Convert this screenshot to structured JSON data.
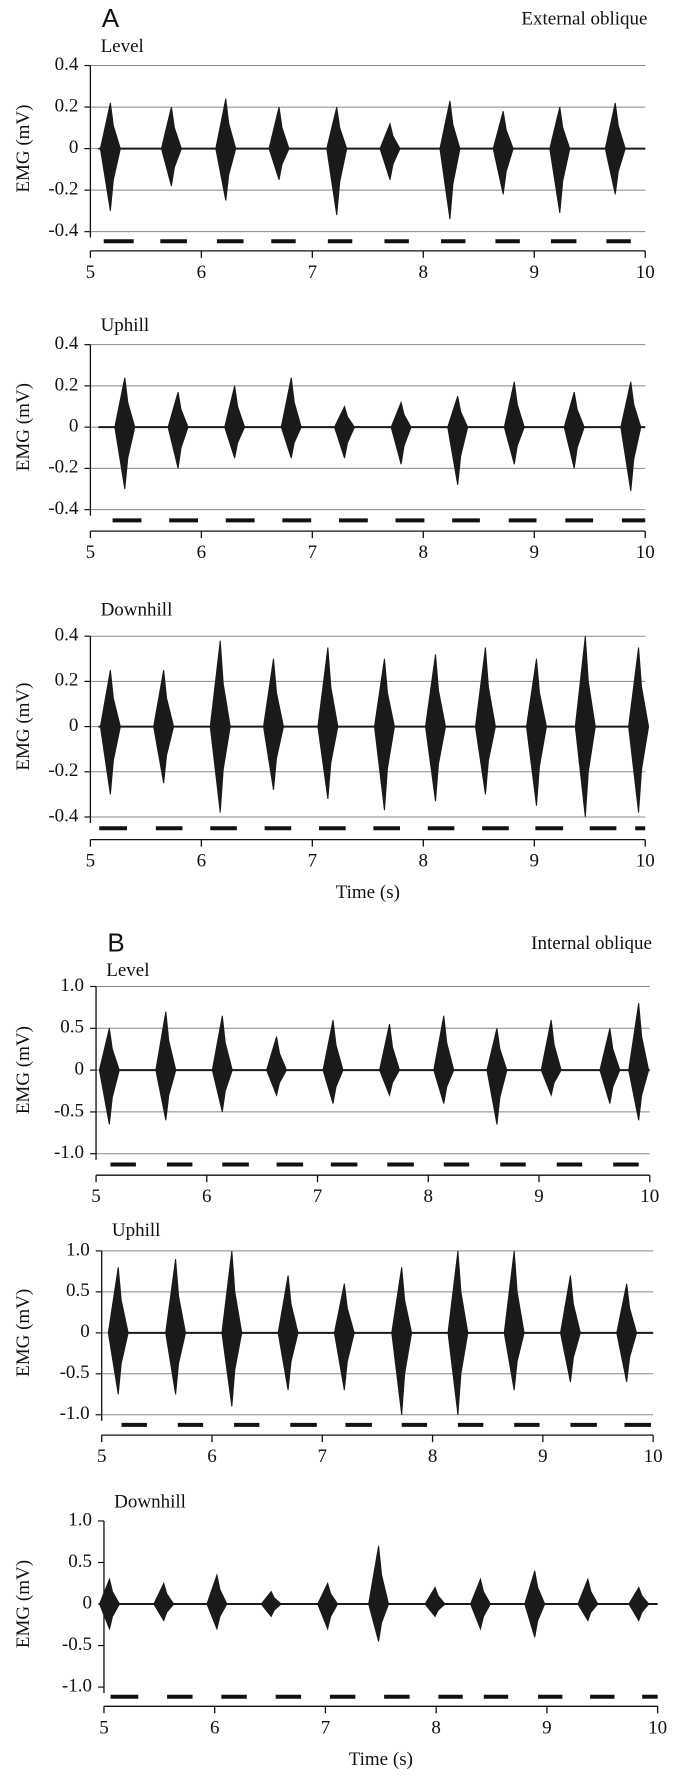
{
  "chart_data": [
    {
      "type": "burst",
      "label": "A",
      "subtitle": "External oblique",
      "title": "Level",
      "ylabel": "EMG (mV)",
      "x": [
        5.18,
        5.73,
        6.22,
        6.7,
        7.22,
        7.7,
        8.24,
        8.72,
        9.23,
        9.73
      ],
      "series": [
        {
          "color": "#1a1a1a",
          "values": [
            0.22,
            0.2,
            0.24,
            0.2,
            0.2,
            0.12,
            0.23,
            0.18,
            0.2,
            0.22
          ]
        },
        {
          "color": "#1a1a1a",
          "values": [
            -0.3,
            -0.18,
            -0.25,
            -0.15,
            -0.32,
            -0.15,
            -0.34,
            -0.22,
            -0.31,
            -0.22
          ]
        }
      ],
      "stance": [
        [
          5.12,
          5.39
        ],
        [
          5.63,
          5.87
        ],
        [
          6.14,
          6.38
        ],
        [
          6.63,
          6.85
        ],
        [
          7.14,
          7.36
        ],
        [
          7.65,
          7.87
        ],
        [
          8.16,
          8.38
        ],
        [
          8.65,
          8.87
        ],
        [
          9.15,
          9.38
        ],
        [
          9.65,
          9.87
        ]
      ],
      "xlim": [
        5,
        10
      ],
      "xticks": [
        5,
        6,
        7,
        8,
        9,
        10
      ],
      "ylim": [
        -0.4,
        0.4
      ],
      "yticks": [
        0.4,
        0.2,
        0,
        -0.2,
        -0.4
      ],
      "grid": true
    },
    {
      "type": "burst",
      "title": "Uphill",
      "ylabel": "EMG (mV)",
      "x": [
        5.31,
        5.79,
        6.3,
        6.81,
        7.29,
        7.8,
        8.31,
        8.82,
        9.36,
        9.87
      ],
      "series": [
        {
          "color": "#1a1a1a",
          "values": [
            0.24,
            0.17,
            0.2,
            0.24,
            0.1,
            0.12,
            0.15,
            0.22,
            0.17,
            0.22
          ]
        },
        {
          "color": "#1a1a1a",
          "values": [
            -0.3,
            -0.2,
            -0.15,
            -0.15,
            -0.15,
            -0.18,
            -0.28,
            -0.18,
            -0.2,
            -0.31
          ]
        }
      ],
      "stance": [
        [
          5.2,
          5.46
        ],
        [
          5.71,
          5.97
        ],
        [
          6.22,
          6.48
        ],
        [
          6.73,
          6.99
        ],
        [
          7.24,
          7.5
        ],
        [
          7.75,
          8.01
        ],
        [
          8.26,
          8.51
        ],
        [
          8.77,
          9.02
        ],
        [
          9.28,
          9.53
        ],
        [
          9.79,
          10
        ]
      ],
      "xlim": [
        5,
        10
      ],
      "xticks": [
        5,
        6,
        7,
        8,
        9,
        10
      ],
      "ylim": [
        -0.4,
        0.4
      ],
      "yticks": [
        0.4,
        0.2,
        0,
        -0.2,
        -0.4
      ],
      "grid": true
    },
    {
      "type": "burst",
      "title": "Downhill",
      "ylabel": "EMG (mV)",
      "xlabel": "Time (s)",
      "x": [
        5.18,
        5.66,
        6.17,
        6.65,
        7.14,
        7.65,
        8.11,
        8.56,
        9.02,
        9.46,
        9.94
      ],
      "series": [
        {
          "color": "#1a1a1a",
          "values": [
            0.25,
            0.25,
            0.38,
            0.3,
            0.35,
            0.3,
            0.32,
            0.35,
            0.3,
            0.4,
            0.35
          ]
        },
        {
          "color": "#1a1a1a",
          "values": [
            -0.3,
            -0.25,
            -0.38,
            -0.28,
            -0.32,
            -0.37,
            -0.33,
            -0.3,
            -0.35,
            -0.4,
            -0.38
          ]
        }
      ],
      "stance": [
        [
          5.08,
          5.33
        ],
        [
          5.59,
          5.83
        ],
        [
          6.08,
          6.32
        ],
        [
          6.57,
          6.81
        ],
        [
          7.06,
          7.3
        ],
        [
          7.55,
          7.79
        ],
        [
          8.04,
          8.28
        ],
        [
          8.53,
          8.77
        ],
        [
          9.01,
          9.26
        ],
        [
          9.5,
          9.74
        ],
        [
          9.91,
          10
        ]
      ],
      "xlim": [
        5,
        10
      ],
      "xticks": [
        5,
        6,
        7,
        8,
        9,
        10
      ],
      "ylim": [
        -0.4,
        0.4
      ],
      "yticks": [
        0.4,
        0.2,
        0,
        -0.2,
        -0.4
      ],
      "grid": true
    },
    {
      "type": "burst",
      "label": "B",
      "subtitle": "Internal oblique",
      "title": "Level",
      "ylabel": "EMG (mV)",
      "x": [
        5.12,
        5.63,
        6.14,
        6.63,
        7.14,
        7.65,
        8.14,
        8.62,
        9.11,
        9.64,
        9.9
      ],
      "series": [
        {
          "color": "#1a1a1a",
          "values": [
            0.5,
            0.7,
            0.65,
            0.4,
            0.6,
            0.55,
            0.65,
            0.5,
            0.6,
            0.5,
            0.8
          ]
        },
        {
          "color": "#1a1a1a",
          "values": [
            -0.65,
            -0.6,
            -0.5,
            -0.3,
            -0.4,
            -0.3,
            -0.4,
            -0.65,
            -0.3,
            -0.4,
            -0.6
          ]
        }
      ],
      "stance": [
        [
          5.13,
          5.36
        ],
        [
          5.64,
          5.87
        ],
        [
          6.14,
          6.38
        ],
        [
          6.63,
          6.87
        ],
        [
          7.12,
          7.36
        ],
        [
          7.63,
          7.87
        ],
        [
          8.14,
          8.37
        ],
        [
          8.65,
          8.88
        ],
        [
          9.16,
          9.39
        ],
        [
          9.67,
          9.9
        ]
      ],
      "xlim": [
        5,
        10
      ],
      "xticks": [
        5,
        6,
        7,
        8,
        9,
        10
      ],
      "ylim": [
        -1,
        1
      ],
      "yticks": [
        {
          "value": 1,
          "label": "1.0"
        },
        0.5,
        0,
        -0.5,
        {
          "value": -1,
          "label": "-1.0"
        }
      ],
      "grid": true
    },
    {
      "type": "burst",
      "title": "Uphill",
      "ylabel": "EMG (mV)",
      "x": [
        5.15,
        5.67,
        6.18,
        6.69,
        7.2,
        7.72,
        8.23,
        8.74,
        9.25,
        9.76
      ],
      "series": [
        {
          "color": "#1a1a1a",
          "values": [
            0.8,
            0.9,
            1.0,
            0.7,
            0.6,
            0.8,
            1.0,
            1.0,
            0.7,
            0.6
          ]
        },
        {
          "color": "#1a1a1a",
          "values": [
            -0.75,
            -0.75,
            -0.9,
            -0.7,
            -0.7,
            -1.0,
            -1.0,
            -0.7,
            -0.6,
            -0.6
          ]
        }
      ],
      "stance": [
        [
          5.18,
          5.41
        ],
        [
          5.69,
          5.92
        ],
        [
          6.2,
          6.43
        ],
        [
          6.71,
          6.95
        ],
        [
          7.21,
          7.45
        ],
        [
          7.72,
          7.95
        ],
        [
          8.23,
          8.46
        ],
        [
          8.74,
          8.97
        ],
        [
          9.25,
          9.49
        ],
        [
          9.74,
          9.98
        ]
      ],
      "xlim": [
        5,
        10
      ],
      "xticks": [
        5,
        6,
        7,
        8,
        9,
        10
      ],
      "ylim": [
        -1,
        1
      ],
      "yticks": [
        {
          "value": 1,
          "label": "1.0"
        },
        0.5,
        0,
        -0.5,
        {
          "value": -1,
          "label": "-1.0"
        }
      ],
      "grid": true
    },
    {
      "type": "burst",
      "title": "Downhill",
      "ylabel": "EMG (mV)",
      "xlabel": "Time (s)",
      "x": [
        5.05,
        5.54,
        6.02,
        6.51,
        7.02,
        7.48,
        7.99,
        8.4,
        8.89,
        9.37,
        9.83
      ],
      "series": [
        {
          "color": "#1a1a1a",
          "values": [
            0.3,
            0.25,
            0.35,
            0.15,
            0.25,
            0.7,
            0.2,
            0.3,
            0.4,
            0.3,
            0.2
          ]
        },
        {
          "color": "#1a1a1a",
          "values": [
            -0.3,
            -0.2,
            -0.3,
            -0.15,
            -0.3,
            -0.45,
            -0.15,
            -0.3,
            -0.4,
            -0.2,
            -0.2
          ]
        }
      ],
      "stance": [
        [
          5.06,
          5.31
        ],
        [
          5.57,
          5.8
        ],
        [
          6.06,
          6.29
        ],
        [
          6.55,
          6.78
        ],
        [
          7.04,
          7.27
        ],
        [
          7.53,
          7.76
        ],
        [
          8.02,
          8.24
        ],
        [
          8.43,
          8.65
        ],
        [
          8.92,
          9.14
        ],
        [
          9.39,
          9.61
        ],
        [
          9.86,
          10
        ]
      ],
      "xlim": [
        5,
        10
      ],
      "xticks": [
        5,
        6,
        7,
        8,
        9,
        10
      ],
      "ylim": [
        -1,
        1
      ],
      "yticks": [
        {
          "value": 1,
          "label": "1.0"
        },
        0.5,
        0,
        -0.5,
        {
          "value": -1,
          "label": "-1.0"
        }
      ],
      "grid": false
    }
  ]
}
